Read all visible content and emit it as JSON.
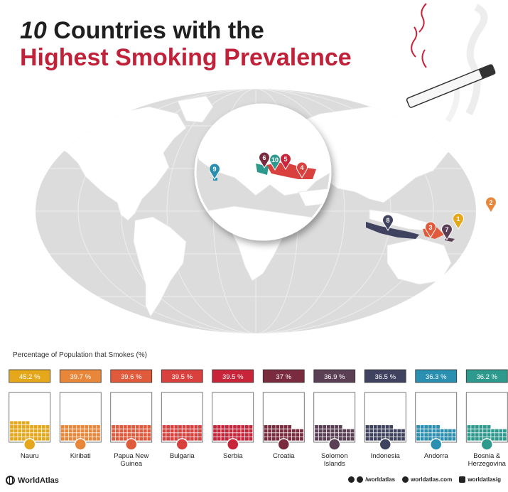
{
  "title": {
    "number": "10",
    "line1_rest": " Countries with the",
    "line2": "Highest Smoking Prevalence"
  },
  "subtitle": "Percentage of Population that Smokes (%)",
  "footer": {
    "brand": "WorldAtlas",
    "social_1": "/worldatlas",
    "social_2": "worldatlas.com",
    "social_3": "worldatlasig"
  },
  "icons": {
    "cigarette": "cigarette-icon",
    "pin": "map-pin-icon",
    "brand": "worldatlas-logo-icon",
    "flag": "country-flag-icon"
  },
  "colors": {
    "title_accent": "#c0223a",
    "map_ocean": "#dcdcdc",
    "map_land": "#ffffff"
  },
  "chart_data": {
    "type": "bar",
    "ylabel": "Percentage of Population that Smokes (%)",
    "ylim": [
      0,
      100
    ],
    "categories": [
      "Nauru",
      "Kiribati",
      "Papua New Guinea",
      "Bulgaria",
      "Serbia",
      "Croatia",
      "Solomon Islands",
      "Indonesia",
      "Andorra",
      "Bosnia & Herzegovina"
    ],
    "labels": [
      "Nauru",
      "Kiribati",
      "Papua New\nGuinea",
      "Bulgaria",
      "Serbia",
      "Croatia",
      "Solomon\nIslands",
      "Indonesia",
      "Andorra",
      "Bosnia &\nHerzegovina"
    ],
    "values": [
      45.2,
      39.7,
      39.6,
      39.5,
      39.5,
      37,
      36.9,
      36.5,
      36.3,
      36.2
    ],
    "value_labels": [
      "45.2 %",
      "39.7 %",
      "39.6 %",
      "39.5 %",
      "39.5 %",
      "37 %",
      "36.9 %",
      "36.5 %",
      "36.3 %",
      "36.2 %"
    ],
    "ranks": [
      "1",
      "2",
      "3",
      "4",
      "5",
      "6",
      "7",
      "8",
      "9",
      "10"
    ],
    "colors": [
      "#e5a81c",
      "#e8873a",
      "#e05a3c",
      "#d8413e",
      "#c8243a",
      "#7a2c3e",
      "#5a3f55",
      "#40435f",
      "#2a8fb0",
      "#2e9a8e"
    ]
  }
}
